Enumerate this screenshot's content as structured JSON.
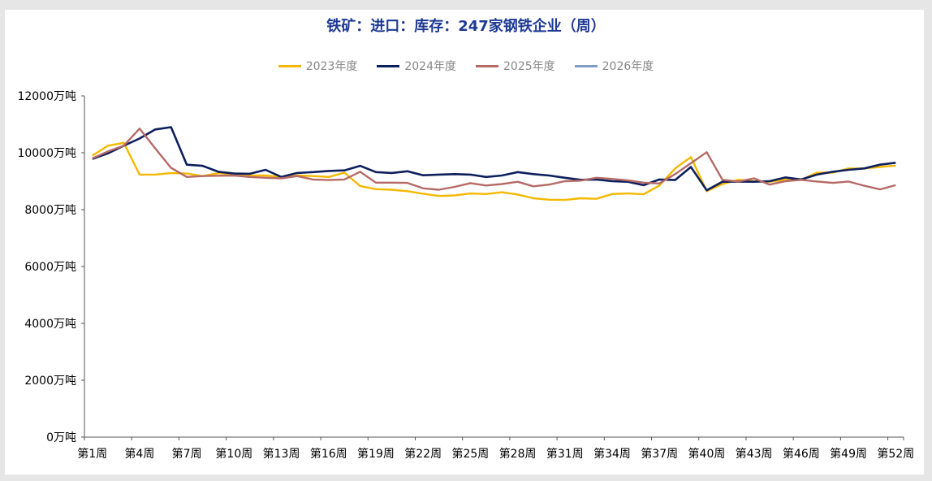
{
  "chart_data": {
    "type": "line",
    "title": "铁矿：进口：库存：247家钢铁企业（周）",
    "ylim": [
      0,
      12000
    ],
    "y_ticks": [
      "12000万吨",
      "10000万吨",
      "8000万吨",
      "6000万吨",
      "4000万吨",
      "2000万吨",
      "0万吨"
    ],
    "x_tick_labels": [
      "第1周",
      "第4周",
      "第7周",
      "第10周",
      "第13周",
      "第16周",
      "第19周",
      "第22周",
      "第25周",
      "第28周",
      "第31周",
      "第34周",
      "第37周",
      "第40周",
      "第43周",
      "第46周",
      "第49周",
      "第52周"
    ],
    "legend_position": "top",
    "grid": false,
    "series": [
      {
        "name": "2023年度",
        "color": "#f5b800",
        "values": [
          9900,
          10250,
          10350,
          9230,
          9230,
          9290,
          9270,
          9180,
          9280,
          9250,
          9200,
          9200,
          9150,
          9200,
          9180,
          9150,
          9300,
          8830,
          8720,
          8700,
          8650,
          8560,
          8480,
          8500,
          8570,
          8550,
          8610,
          8530,
          8400,
          8350,
          8340,
          8400,
          8380,
          8550,
          8570,
          8540,
          8850,
          9450,
          9850,
          8650,
          8900,
          9050,
          9000,
          8980,
          9050,
          9050,
          9300,
          9300,
          9450,
          9450,
          9500,
          9550
        ]
      },
      {
        "name": "2024年度",
        "color": "#0d1f5c",
        "values": [
          9780,
          9980,
          10250,
          10500,
          10820,
          10900,
          9580,
          9540,
          9330,
          9270,
          9260,
          9400,
          9150,
          9290,
          9320,
          9360,
          9380,
          9540,
          9320,
          9290,
          9350,
          9210,
          9230,
          9250,
          9230,
          9150,
          9200,
          9320,
          9250,
          9200,
          9120,
          9050,
          9060,
          9000,
          8980,
          8860,
          9060,
          9040,
          9500,
          8680,
          8980,
          8990,
          8980,
          9000,
          9130,
          9060,
          9230,
          9330,
          9400,
          9450,
          9580,
          9650
        ]
      },
      {
        "name": "2025年度",
        "color": "#b56a66",
        "values": [
          9800,
          10050,
          10250,
          10850,
          10150,
          9470,
          9150,
          9180,
          9190,
          9200,
          9150,
          9120,
          9100,
          9180,
          9060,
          9040,
          9060,
          9330,
          8950,
          8950,
          8940,
          8750,
          8700,
          8800,
          8930,
          8850,
          8900,
          8980,
          8820,
          8880,
          9000,
          9020,
          9120,
          9080,
          9030,
          8950,
          8920,
          9250,
          9630,
          10020,
          9050,
          8990,
          9100,
          8880,
          9000,
          9050,
          8990,
          8940,
          8990,
          8840,
          8710,
          8860
        ]
      },
      {
        "name": "2026年度",
        "color": "#7f9cc4",
        "values": []
      }
    ]
  }
}
